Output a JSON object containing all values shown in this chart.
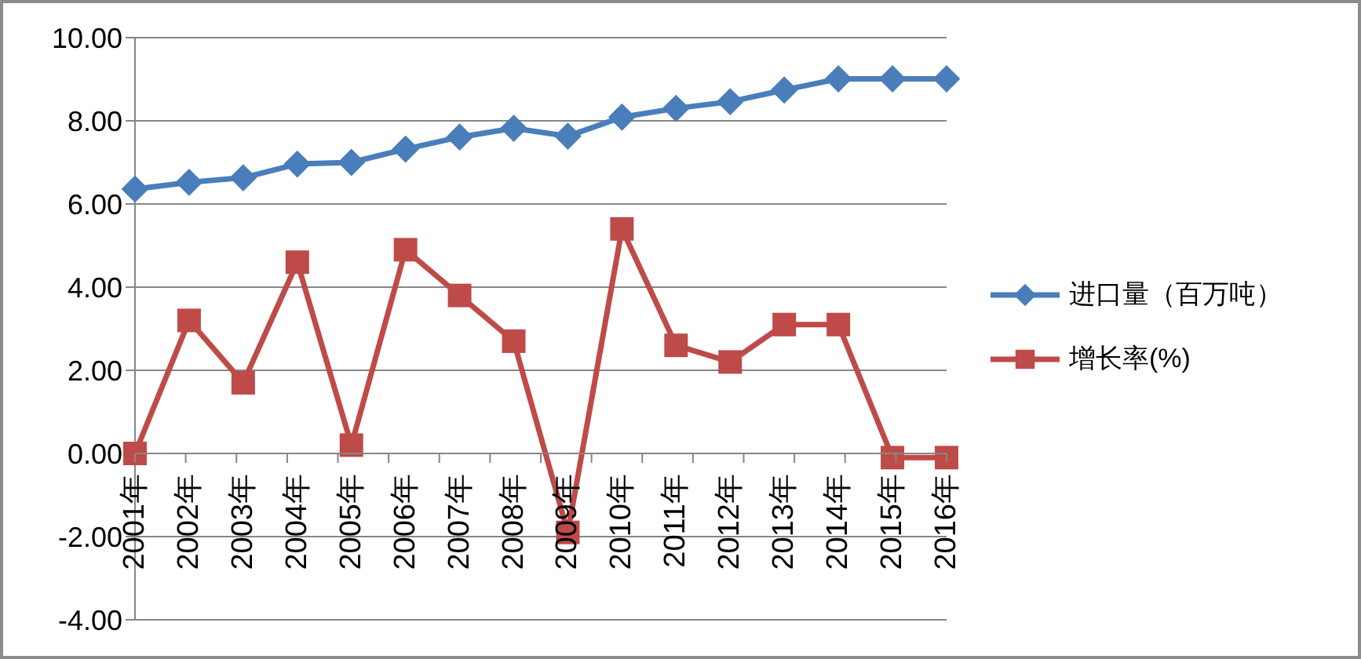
{
  "chart_data": {
    "type": "line",
    "categories": [
      "2001年",
      "2002年",
      "2003年",
      "2004年",
      "2005年",
      "2006年",
      "2007年",
      "2008年",
      "2009年",
      "2010年",
      "2011年",
      "2012年",
      "2013年",
      "2014年",
      "2015年",
      "2016年"
    ],
    "series": [
      {
        "name": "进口量（百万吨）",
        "color": "#4a7ebb",
        "marker": "diamond",
        "values": [
          6.36,
          6.52,
          6.63,
          6.96,
          7.0,
          7.32,
          7.61,
          7.82,
          7.63,
          8.09,
          8.3,
          8.46,
          8.74,
          9.01,
          9.01,
          9.01
        ]
      },
      {
        "name": "增长率(%)",
        "color": "#be4b48",
        "marker": "square",
        "values": [
          0.0,
          3.2,
          1.7,
          4.6,
          0.2,
          4.9,
          3.8,
          2.7,
          -1.9,
          5.4,
          2.6,
          2.2,
          3.1,
          3.1,
          -0.1,
          -0.1
        ]
      }
    ],
    "ylim": [
      -4,
      10
    ],
    "yticks": [
      {
        "value": -4,
        "label": "-4.00"
      },
      {
        "value": -2,
        "label": "-2.00"
      },
      {
        "value": 0,
        "label": "0.00"
      },
      {
        "value": 2,
        "label": "2.00"
      },
      {
        "value": 4,
        "label": "4.00"
      },
      {
        "value": 6,
        "label": "6.00"
      },
      {
        "value": 8,
        "label": "8.00"
      },
      {
        "value": 10,
        "label": "10.00"
      }
    ],
    "grid": "y",
    "legend": "right",
    "line_style": "solid"
  }
}
